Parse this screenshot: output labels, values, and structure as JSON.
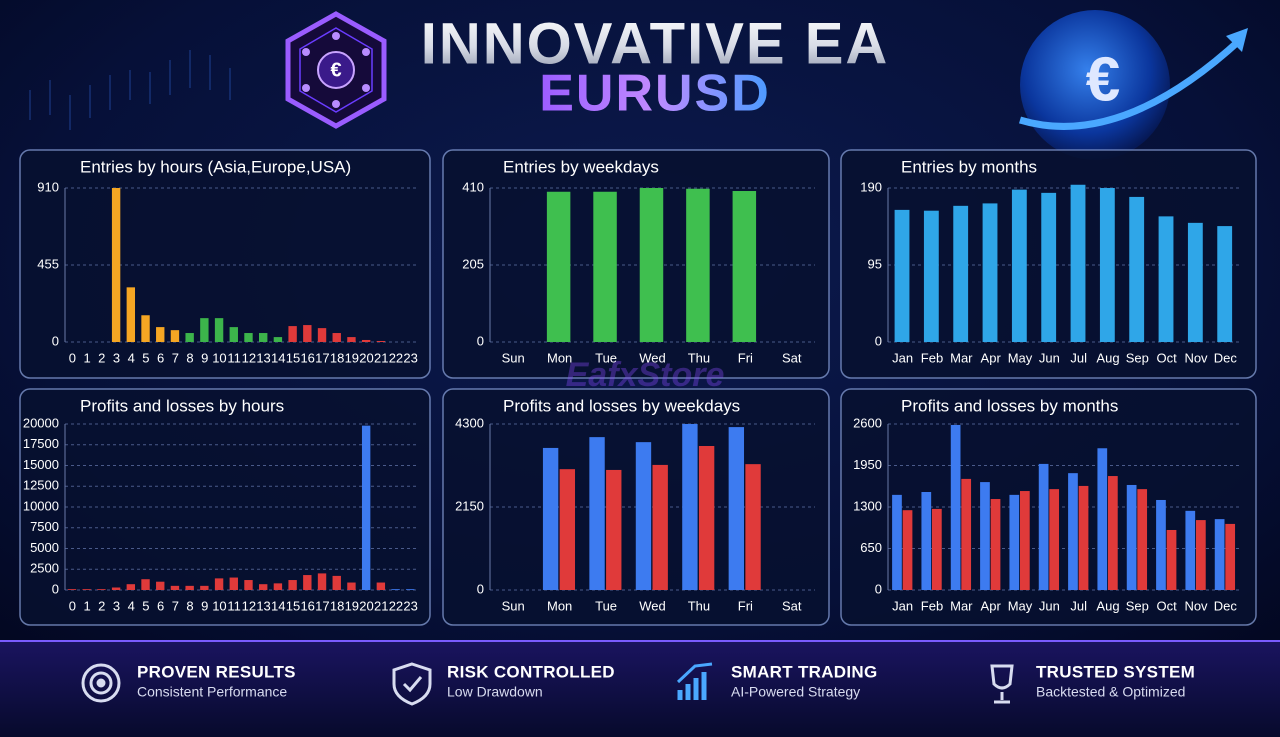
{
  "header": {
    "title": "INNOVATIVE EA",
    "subtitle": "EURUSD",
    "currency_symbol": "€"
  },
  "watermark": "EafxStore",
  "chart_data": [
    {
      "type": "bar",
      "title": "Entries by hours (Asia,Europe,USA)",
      "categories": [
        "0",
        "1",
        "2",
        "3",
        "4",
        "5",
        "6",
        "7",
        "8",
        "9",
        "10",
        "11",
        "12",
        "13",
        "14",
        "15",
        "16",
        "17",
        "18",
        "19",
        "20",
        "21",
        "22",
        "23"
      ],
      "values": [
        0,
        0,
        0,
        910,
        323,
        158,
        88,
        70,
        53,
        141,
        141,
        88,
        53,
        53,
        29,
        94,
        100,
        82,
        53,
        29,
        12,
        6,
        0,
        0
      ],
      "colors": [
        "#f5a623",
        "#f5a623",
        "#f5a623",
        "#f5a623",
        "#f5a623",
        "#f5a623",
        "#f5a623",
        "#f5a623",
        "#3cb44b",
        "#3cb44b",
        "#3cb44b",
        "#3cb44b",
        "#3cb44b",
        "#3cb44b",
        "#3cb44b",
        "#e03a3a",
        "#e03a3a",
        "#e03a3a",
        "#e03a3a",
        "#e03a3a",
        "#e03a3a",
        "#e03a3a",
        "#e03a3a",
        "#e03a3a"
      ],
      "ylim": [
        0,
        910
      ],
      "yticks": [
        0,
        455,
        910
      ],
      "grid": true
    },
    {
      "type": "bar",
      "title": "Entries by weekdays",
      "categories": [
        "Sun",
        "Mon",
        "Tue",
        "Wed",
        "Thu",
        "Fri",
        "Sat"
      ],
      "values": [
        0,
        400,
        400,
        410,
        408,
        402,
        0
      ],
      "color": "#3fbf4f",
      "ylim": [
        0,
        410
      ],
      "yticks": [
        0,
        205,
        410
      ],
      "grid": true
    },
    {
      "type": "bar",
      "title": "Entries by months",
      "categories": [
        "Jan",
        "Feb",
        "Mar",
        "Apr",
        "May",
        "Jun",
        "Jul",
        "Aug",
        "Sep",
        "Oct",
        "Nov",
        "Dec"
      ],
      "values": [
        163,
        162,
        168,
        171,
        188,
        184,
        194,
        190,
        179,
        155,
        147,
        143
      ],
      "color": "#2fa6e8",
      "ylim": [
        0,
        190
      ],
      "yticks": [
        0,
        95,
        190
      ],
      "grid": true
    },
    {
      "type": "bar",
      "title": "Profits and losses by hours",
      "categories": [
        "0",
        "1",
        "2",
        "3",
        "4",
        "5",
        "6",
        "7",
        "8",
        "9",
        "10",
        "11",
        "12",
        "13",
        "14",
        "15",
        "16",
        "17",
        "18",
        "19",
        "20",
        "21",
        "22",
        "23"
      ],
      "values": [
        100,
        100,
        100,
        300,
        700,
        1300,
        1000,
        500,
        500,
        500,
        1400,
        1500,
        1200,
        700,
        800,
        1200,
        1800,
        2000,
        1700,
        900,
        19800,
        900,
        100,
        100
      ],
      "colors": [
        "#e03a3a",
        "#e03a3a",
        "#e03a3a",
        "#e03a3a",
        "#e03a3a",
        "#e03a3a",
        "#e03a3a",
        "#e03a3a",
        "#e03a3a",
        "#e03a3a",
        "#e03a3a",
        "#e03a3a",
        "#e03a3a",
        "#e03a3a",
        "#e03a3a",
        "#e03a3a",
        "#e03a3a",
        "#e03a3a",
        "#e03a3a",
        "#e03a3a",
        "#3d7bf0",
        "#e03a3a",
        "#3d7bf0",
        "#3d7bf0"
      ],
      "ylim": [
        0,
        20000
      ],
      "yticks": [
        0,
        2500,
        5000,
        7500,
        10000,
        12500,
        15000,
        17500,
        20000
      ],
      "grid": true
    },
    {
      "type": "bar",
      "title": "Profits and losses by weekdays",
      "categories": [
        "Sun",
        "Mon",
        "Tue",
        "Wed",
        "Thu",
        "Fri",
        "Sat"
      ],
      "series": [
        {
          "color": "#3d7bf0",
          "values": [
            null,
            3680,
            3960,
            3830,
            4300,
            4220,
            null
          ]
        },
        {
          "color": "#e03a3a",
          "values": [
            null,
            3130,
            3110,
            3240,
            3730,
            3260,
            null
          ]
        }
      ],
      "ylim": [
        0,
        4300
      ],
      "yticks": [
        0,
        2150,
        4300
      ],
      "grid": true
    },
    {
      "type": "bar",
      "title": "Profits and losses by months",
      "categories": [
        "Jan",
        "Feb",
        "Mar",
        "Apr",
        "May",
        "Jun",
        "Jul",
        "Aug",
        "Sep",
        "Oct",
        "Nov",
        "Dec"
      ],
      "series": [
        {
          "color": "#3d7bf0",
          "values": [
            1490,
            1535,
            2585,
            1690,
            1490,
            1975,
            1830,
            2220,
            1645,
            1410,
            1240,
            1110
          ]
        },
        {
          "color": "#e03a3a",
          "values": [
            1250,
            1270,
            1740,
            1425,
            1550,
            1580,
            1630,
            1785,
            1580,
            940,
            1095,
            1035
          ]
        }
      ],
      "ylim": [
        0,
        2600
      ],
      "yticks": [
        0,
        650,
        1300,
        1950,
        2600
      ],
      "grid": true
    }
  ],
  "features": [
    {
      "title": "PROVEN RESULTS",
      "subtitle": "Consistent Performance"
    },
    {
      "title": "RISK CONTROLLED",
      "subtitle": "Low Drawdown"
    },
    {
      "title": "SMART TRADING",
      "subtitle": "AI-Powered Strategy"
    },
    {
      "title": "TRUSTED SYSTEM",
      "subtitle": "Backtested & Optimized"
    }
  ]
}
